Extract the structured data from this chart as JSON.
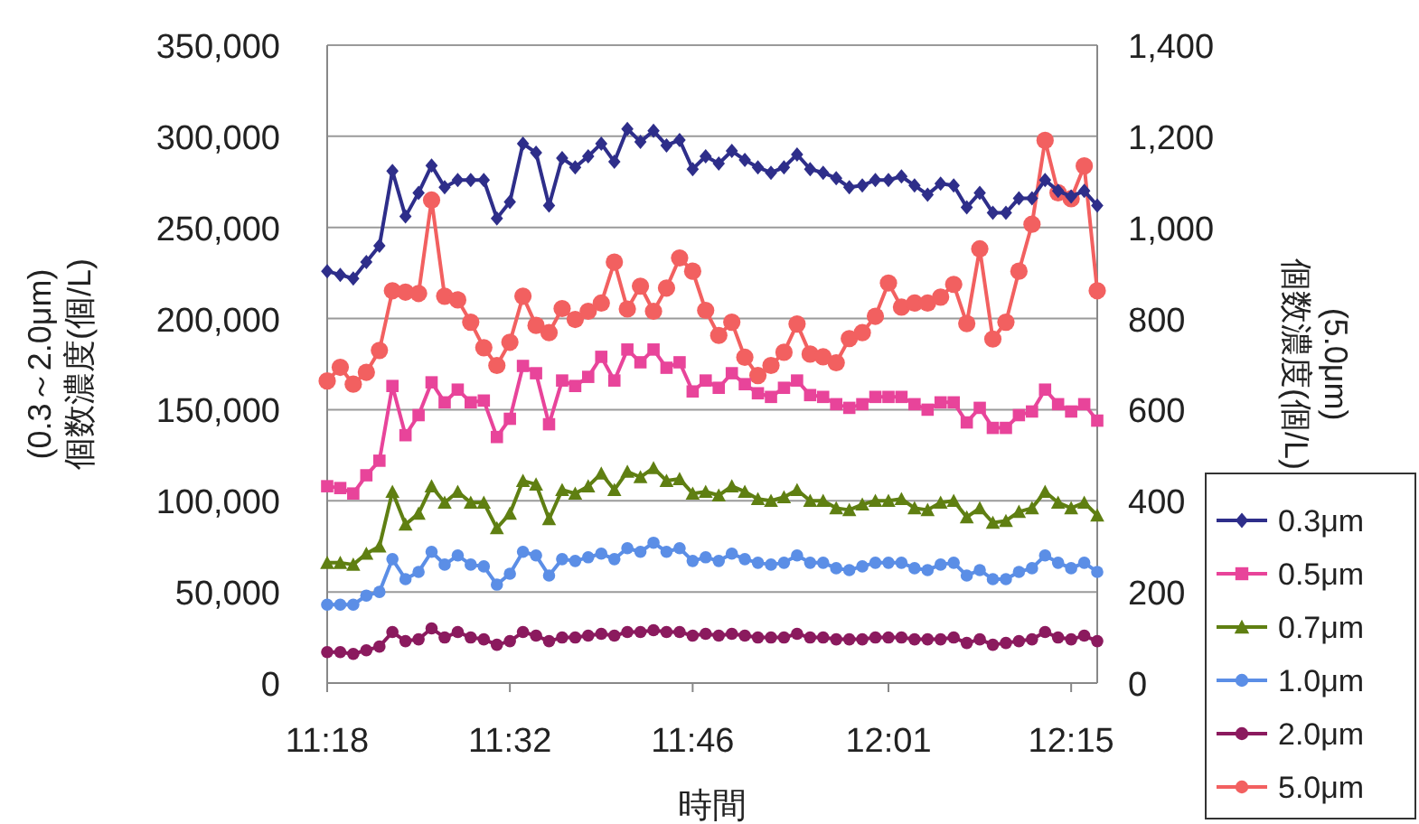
{
  "chart_data": {
    "type": "line",
    "xlabel": "時間",
    "ylabel": "(0.3～2.0μm)\n個数濃度(個/L)",
    "y2label": "(5.0μm)\n個数濃度(個/L)",
    "x": [
      11.3,
      11.3167,
      11.3333,
      11.35,
      11.3667,
      11.3833,
      11.4,
      11.4167,
      11.4333,
      11.45,
      11.4667,
      11.4833,
      11.5,
      11.5167,
      11.5333,
      11.55,
      11.5667,
      11.5833,
      11.6,
      11.6167,
      11.6333,
      11.65,
      11.6667,
      11.6833,
      11.7,
      11.7167,
      11.7333,
      11.75,
      11.7667,
      11.7833,
      11.8,
      11.8167,
      11.8333,
      11.85,
      11.8667,
      11.8833,
      11.9,
      11.9167,
      11.9333,
      11.95,
      11.9667,
      11.9833,
      12.0,
      12.0167,
      12.0333,
      12.05,
      12.0667,
      12.0833,
      12.1,
      12.1167,
      12.1333,
      12.15,
      12.1667,
      12.1833,
      12.2,
      12.2167,
      12.2333,
      12.25,
      12.2667,
      12.2833
    ],
    "xlim": [
      11.3,
      12.2833
    ],
    "xticks": [
      {
        "value": 11.3,
        "label": "11:18"
      },
      {
        "value": 11.5333,
        "label": "11:32"
      },
      {
        "value": 11.7667,
        "label": "11:46"
      },
      {
        "value": 12.0167,
        "label": "12:01"
      },
      {
        "value": 12.25,
        "label": "12:15"
      }
    ],
    "ylim": [
      0,
      350000
    ],
    "yticks": [
      {
        "value": 0,
        "label": "0"
      },
      {
        "value": 50000,
        "label": "50,000"
      },
      {
        "value": 100000,
        "label": "100,000"
      },
      {
        "value": 150000,
        "label": "150,000"
      },
      {
        "value": 200000,
        "label": "200,000"
      },
      {
        "value": 250000,
        "label": "250,000"
      },
      {
        "value": 300000,
        "label": "300,000"
      },
      {
        "value": 350000,
        "label": "350,000"
      }
    ],
    "y2lim": [
      0,
      1400
    ],
    "y2ticks": [
      {
        "value": 0,
        "label": "0"
      },
      {
        "value": 200,
        "label": "200"
      },
      {
        "value": 400,
        "label": "400"
      },
      {
        "value": 600,
        "label": "600"
      },
      {
        "value": 800,
        "label": "800"
      },
      {
        "value": 1000,
        "label": "1,000"
      },
      {
        "value": 1200,
        "label": "1,200"
      },
      {
        "value": 1400,
        "label": "1,400"
      }
    ],
    "grid": "y",
    "legend": "bottom right",
    "series": [
      {
        "name": "0.3μm",
        "color": "#2e2e8a",
        "marker": "diamond",
        "values": [
          226000,
          224000,
          222000,
          231000,
          240000,
          281000,
          256000,
          269000,
          284000,
          272000,
          276000,
          276000,
          276000,
          255000,
          264000,
          296000,
          291000,
          262000,
          288000,
          283000,
          289000,
          296000,
          286000,
          304000,
          297000,
          303000,
          295000,
          298000,
          282000,
          289000,
          285000,
          292000,
          287000,
          283000,
          280000,
          283000,
          290000,
          282000,
          280000,
          277000,
          272000,
          273000,
          276000,
          276000,
          278000,
          273000,
          268000,
          274000,
          273000,
          261000,
          269000,
          258000,
          258000,
          266000,
          266000,
          276000,
          270000,
          267000,
          270000,
          262000
        ]
      },
      {
        "name": "0.5μm",
        "color": "#e8449a",
        "marker": "square",
        "values": [
          108000,
          107000,
          104000,
          114000,
          122000,
          163000,
          136000,
          147000,
          165000,
          154000,
          161000,
          154000,
          155000,
          135000,
          145000,
          174000,
          170000,
          142000,
          166000,
          163000,
          168000,
          179000,
          166000,
          183000,
          176000,
          183000,
          173000,
          176000,
          160000,
          166000,
          162000,
          170000,
          164000,
          159000,
          157000,
          162000,
          166000,
          158000,
          157000,
          153000,
          151000,
          153000,
          157000,
          157000,
          157000,
          153000,
          150000,
          154000,
          154000,
          143000,
          151000,
          140000,
          140000,
          147000,
          149000,
          161000,
          153000,
          149000,
          153000,
          144000
        ]
      },
      {
        "name": "0.7μm",
        "color": "#5f7f12",
        "marker": "triangle",
        "values": [
          66000,
          66000,
          65000,
          71000,
          75000,
          105000,
          87000,
          93000,
          108000,
          99000,
          105000,
          99000,
          99000,
          85000,
          93000,
          111000,
          109000,
          90000,
          106000,
          104000,
          108000,
          115000,
          106000,
          116000,
          113000,
          118000,
          111000,
          112000,
          104000,
          105000,
          103000,
          108000,
          105000,
          101000,
          100000,
          102000,
          106000,
          100000,
          100000,
          96000,
          95000,
          98000,
          100000,
          100000,
          101000,
          96000,
          95000,
          99000,
          100000,
          91000,
          96000,
          88000,
          89000,
          94000,
          96000,
          105000,
          99000,
          96000,
          99000,
          92000
        ]
      },
      {
        "name": "1.0μm",
        "color": "#5b8ee6",
        "marker": "circle",
        "values": [
          43000,
          43000,
          43000,
          48000,
          50000,
          68000,
          57000,
          61000,
          72000,
          65000,
          70000,
          65000,
          64000,
          54000,
          60000,
          72000,
          70000,
          59000,
          68000,
          67000,
          69000,
          71000,
          68000,
          74000,
          72000,
          77000,
          72000,
          74000,
          67000,
          69000,
          67000,
          71000,
          68000,
          66000,
          65000,
          66000,
          70000,
          66000,
          66000,
          63000,
          62000,
          64000,
          66000,
          66000,
          66000,
          63000,
          62000,
          65000,
          66000,
          59000,
          62000,
          57000,
          57000,
          61000,
          63000,
          70000,
          66000,
          63000,
          66000,
          61000
        ]
      },
      {
        "name": "2.0μm",
        "color": "#8b1a5e",
        "marker": "circle",
        "values": [
          17000,
          17000,
          16000,
          18000,
          20000,
          28000,
          23000,
          24000,
          30000,
          25000,
          28000,
          25000,
          24000,
          21000,
          23000,
          28000,
          26000,
          23000,
          25000,
          25000,
          26000,
          27000,
          26000,
          28000,
          28000,
          29000,
          28000,
          28000,
          26000,
          27000,
          26000,
          27000,
          26000,
          25000,
          25000,
          25000,
          27000,
          25000,
          25000,
          24000,
          24000,
          24000,
          25000,
          25000,
          25000,
          24000,
          24000,
          24000,
          25000,
          22000,
          24000,
          21000,
          22000,
          23000,
          24000,
          28000,
          25000,
          24000,
          26000,
          23000
        ]
      },
      {
        "name": "5.0μm",
        "color": "#f26060",
        "marker": "circle",
        "axis": "y2",
        "values": [
          663,
          693,
          656,
          682,
          730,
          861,
          858,
          855,
          1060,
          849,
          841,
          792,
          736,
          697,
          748,
          849,
          785,
          769,
          822,
          798,
          816,
          834,
          924,
          821,
          871,
          816,
          867,
          933,
          904,
          818,
          763,
          792,
          715,
          675,
          697,
          726,
          788,
          722,
          716,
          703,
          756,
          769,
          805,
          878,
          825,
          834,
          834,
          847,
          875,
          789,
          953,
          755,
          792,
          904,
          1007,
          1191,
          1076,
          1063,
          1135,
          861
        ]
      }
    ]
  }
}
